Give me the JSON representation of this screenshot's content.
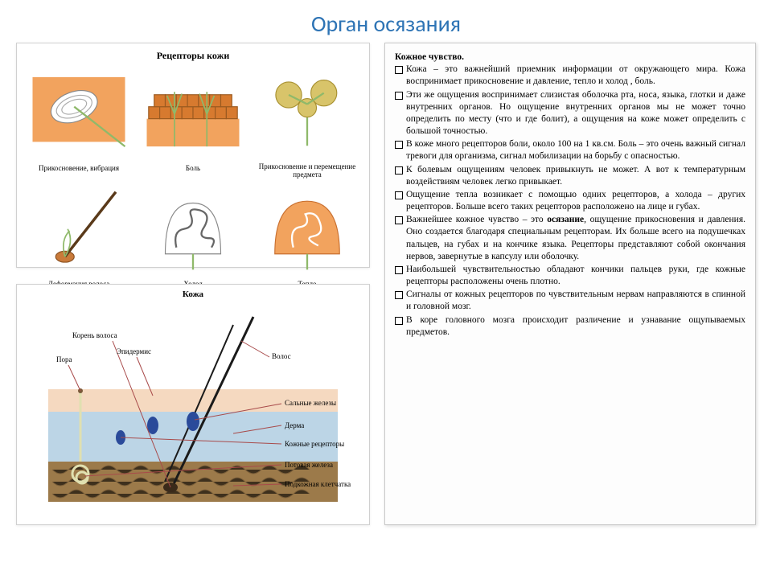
{
  "title": "Орган осязания",
  "receptors": {
    "heading": "Рецепторы кожи",
    "cells": [
      {
        "label": "Прикосновение, вибрация"
      },
      {
        "label": "Боль"
      },
      {
        "label": "Прикосновение и перемещение предмета"
      },
      {
        "label": "Деформация волоса"
      },
      {
        "label": "Холод"
      },
      {
        "label": "Тепло"
      }
    ],
    "colors": {
      "skin_orange": "#f2a35e",
      "skin_dark": "#d77a2f",
      "nerve_green": "#8fb96a",
      "capsule_gray": "#cfcfcf",
      "hair": "#5a3a1a"
    }
  },
  "skin": {
    "heading": "Кожа",
    "labels": {
      "hair_root": "Корень волоса",
      "pore": "Пора",
      "epidermis": "Эпидермис",
      "hair": "Волос",
      "sebaceous": "Сальные железы",
      "dermis": "Дерма",
      "receptors": "Кожные рецепторы",
      "sweat": "Потовая железа",
      "subcut": "Подкожная клетчатка"
    },
    "colors": {
      "epidermis": "#f5d9c0",
      "dermis": "#bcd5e6",
      "subcut": "#9c7a4a",
      "hair": "#1a1a1a",
      "gland": "#2a4a9a",
      "sweat": "#e0e0b0",
      "line": "#a84a4a"
    }
  },
  "text": {
    "header": "Кожное чувство",
    "bullets": [
      "Кожа – это важнейший приемник информации от окружающего мира. Кожа воспринимает прикосновение и давление, тепло и холод , боль.",
      "Эти же ощущения воспринимает слизистая оболочка рта, носа, языка, глотки и даже внутренних органов. Но ощущение внутренних органов мы не может точно определить по месту (что и где болит), а ощущения на коже может определить с большой точностью.",
      "В коже много рецепторов боли, около 100 на 1 кв.см. Боль – это очень важный сигнал тревоги для организма, сигнал мобилизации на борьбу с опасностью.",
      "К болевым ощущениям человек привыкнуть не может. А вот к температурным воздействиям человек легко привыкает.",
      "Ощущение тепла возникает с помощью одних рецепторов, а холода – других рецепторов. Больше всего таких рецепторов расположено на лице и губах.",
      "Важнейшее кожное чувство – это <b>осязание</b>, ощущение прикосновения и давления. Оно создается благодаря специальным рецепторам. Их больше всего на подушечках пальцев, на губах и на кончике языка. Рецепторы представляют собой окончания нервов, завернутые в капсулу или оболочку.",
      "Наибольшей чувствительностью обладают кончики пальцев руки, где кожные рецепторы расположены очень плотно.",
      "Сигналы от кожных рецепторов по чувствительным нервам направляются в спинной и головной мозг.",
      "В коре головного мозга происходит различение и узнавание ощупываемых предметов."
    ]
  }
}
